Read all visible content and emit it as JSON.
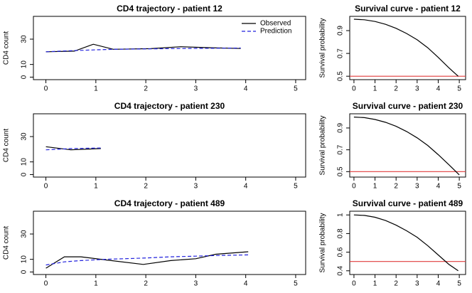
{
  "chart_data": [
    {
      "type": "line",
      "title": "CD4 trajectory - patient 12",
      "ylabel": "CD4 count",
      "x": [
        0,
        0.57,
        0.95,
        1.35,
        2.1,
        2.7,
        3.3,
        3.9
      ],
      "series": [
        {
          "name": "Observed",
          "color": "#000000",
          "dash": false,
          "values": [
            20,
            20.5,
            26,
            22,
            22.5,
            24,
            23.2,
            22.6
          ]
        },
        {
          "name": "Prediction",
          "color": "#2222dd",
          "dash": true,
          "values": [
            20,
            21,
            21.5,
            22,
            22.3,
            22.6,
            22.8,
            23
          ]
        }
      ],
      "legend": "topright",
      "xlim": [
        -0.25,
        5.2
      ],
      "xticks": [
        0,
        1,
        2,
        3,
        4,
        5
      ],
      "ylim": [
        -2,
        48
      ],
      "yticks": [
        0,
        10,
        30
      ]
    },
    {
      "type": "line",
      "title": "Survival curve - patient 12",
      "ylabel": "Survival probability",
      "x": [
        0,
        0.5,
        1,
        1.5,
        2,
        2.5,
        3,
        3.5,
        4,
        4.5,
        4.95
      ],
      "series": [
        {
          "color": "#000000",
          "dash": false,
          "values": [
            1.0,
            0.995,
            0.98,
            0.955,
            0.92,
            0.875,
            0.82,
            0.75,
            0.665,
            0.575,
            0.5
          ]
        }
      ],
      "reference_line": 0.5,
      "reference_color": "#e03c3c",
      "xlim": [
        -0.2,
        5.3
      ],
      "xticks": [
        0,
        1,
        2,
        3,
        4,
        5
      ],
      "ylim": [
        0.47,
        1.025
      ],
      "yticks": [
        0.5,
        0.7,
        0.9
      ]
    },
    {
      "type": "line",
      "title": "CD4 trajectory - patient 230",
      "ylabel": "CD4 count",
      "x": [
        0,
        0.5,
        1.1
      ],
      "series": [
        {
          "color": "#000000",
          "dash": false,
          "values": [
            22,
            19.5,
            20.5
          ]
        },
        {
          "color": "#2222dd",
          "dash": true,
          "values": [
            19.5,
            20.5,
            21
          ]
        }
      ],
      "xlim": [
        -0.25,
        5.2
      ],
      "xticks": [
        0,
        1,
        2,
        3,
        4,
        5
      ],
      "ylim": [
        -2,
        48
      ],
      "yticks": [
        0,
        10,
        30
      ]
    },
    {
      "type": "line",
      "title": "Survival curve - patient 230",
      "ylabel": "Survival probability",
      "x": [
        0,
        0.5,
        1,
        1.5,
        2,
        2.5,
        3,
        3.5,
        4,
        4.5,
        5
      ],
      "series": [
        {
          "color": "#000000",
          "dash": false,
          "values": [
            1.0,
            0.995,
            0.978,
            0.952,
            0.915,
            0.868,
            0.81,
            0.74,
            0.655,
            0.565,
            0.47
          ]
        }
      ],
      "reference_line": 0.5,
      "reference_color": "#e03c3c",
      "xlim": [
        -0.2,
        5.3
      ],
      "xticks": [
        0,
        1,
        2,
        3,
        4,
        5
      ],
      "ylim": [
        0.45,
        1.03
      ],
      "yticks": [
        0.5,
        0.7,
        0.9
      ]
    },
    {
      "type": "line",
      "title": "CD4 trajectory - patient 489",
      "ylabel": "CD4 count",
      "x": [
        0,
        0.37,
        0.7,
        1.2,
        1.95,
        2.5,
        3,
        3.4,
        4.05
      ],
      "series": [
        {
          "color": "#000000",
          "dash": false,
          "values": [
            3,
            12,
            12,
            9.5,
            6,
            9,
            10.5,
            14,
            16
          ]
        },
        {
          "color": "#2222dd",
          "dash": true,
          "values": [
            5.5,
            8,
            9,
            10,
            11,
            12,
            12.5,
            13,
            13.5
          ]
        }
      ],
      "xlim": [
        -0.25,
        5.2
      ],
      "xticks": [
        0,
        1,
        2,
        3,
        4,
        5
      ],
      "ylim": [
        -2,
        48
      ],
      "yticks": [
        0,
        10,
        30
      ]
    },
    {
      "type": "line",
      "title": "Survival curve - patient 489",
      "ylabel": "Survival probability",
      "x": [
        0,
        0.5,
        1,
        1.5,
        2,
        2.5,
        3,
        3.5,
        4,
        4.5,
        4.95
      ],
      "series": [
        {
          "color": "#000000",
          "dash": false,
          "values": [
            1.0,
            0.995,
            0.975,
            0.94,
            0.89,
            0.83,
            0.76,
            0.67,
            0.57,
            0.47,
            0.4
          ]
        }
      ],
      "reference_line": 0.5,
      "reference_color": "#e03c3c",
      "xlim": [
        -0.2,
        5.3
      ],
      "xticks": [
        0,
        1,
        2,
        3,
        4,
        5
      ],
      "ylim": [
        0.36,
        1.04
      ],
      "yticks": [
        0.4,
        0.6,
        0.8,
        1.0
      ]
    }
  ]
}
